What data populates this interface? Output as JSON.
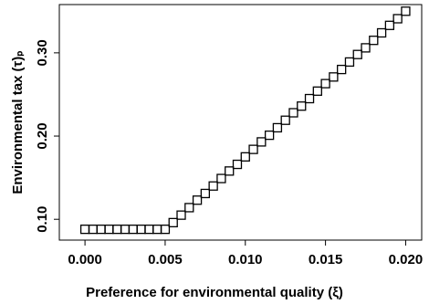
{
  "chart_data": {
    "type": "scatter",
    "x_label": "Preference for environmental quality (ξ)",
    "y_label": "Environmental tax (τ)ₚ",
    "x": [
      0,
      0.0005,
      0.001,
      0.0015,
      0.002,
      0.0025,
      0.003,
      0.0035,
      0.004,
      0.0045,
      0.005,
      0.0055,
      0.006,
      0.0065,
      0.007,
      0.0075,
      0.008,
      0.0085,
      0.009,
      0.0095,
      0.01,
      0.0105,
      0.011,
      0.0115,
      0.012,
      0.0125,
      0.013,
      0.0135,
      0.014,
      0.0145,
      0.015,
      0.0155,
      0.016,
      0.0165,
      0.017,
      0.0175,
      0.018,
      0.0185,
      0.019,
      0.0195,
      0.02
    ],
    "values": [
      0.088,
      0.088,
      0.088,
      0.088,
      0.088,
      0.088,
      0.088,
      0.088,
      0.088,
      0.088,
      0.088,
      0.096,
      0.105,
      0.114,
      0.123,
      0.131,
      0.14,
      0.149,
      0.158,
      0.166,
      0.175,
      0.184,
      0.193,
      0.201,
      0.21,
      0.219,
      0.228,
      0.236,
      0.245,
      0.254,
      0.263,
      0.271,
      0.28,
      0.289,
      0.298,
      0.306,
      0.315,
      0.324,
      0.333,
      0.341,
      0.35
    ],
    "color": "#000000",
    "marker": "square",
    "xlim": [
      -0.0016,
      0.021
    ],
    "ylim": [
      0.075,
      0.358
    ],
    "xticks": [
      {
        "value": 0,
        "label": "0.000"
      },
      {
        "value": 0.005,
        "label": "0.005"
      },
      {
        "value": 0.01,
        "label": "0.010"
      },
      {
        "value": 0.015,
        "label": "0.015"
      },
      {
        "value": 0.02,
        "label": "0.020"
      }
    ],
    "yticks": [
      {
        "value": 0.1,
        "label": "0.10"
      },
      {
        "value": 0.2,
        "label": "0.20"
      },
      {
        "value": 0.3,
        "label": "0.30"
      }
    ]
  }
}
